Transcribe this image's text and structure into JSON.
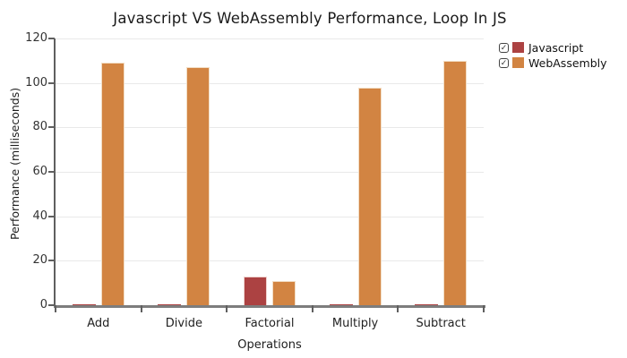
{
  "chart_data": {
    "type": "bar",
    "title": "Javascript VS WebAssembly Performance, Loop In JS",
    "xlabel": "Operations",
    "ylabel": "Performance (milliseconds)",
    "categories": [
      "Add",
      "Divide",
      "Factorial",
      "Multiply",
      "Subtract"
    ],
    "series": [
      {
        "name": "Javascript",
        "color": "#AC4242",
        "border_color": "#efd2ce",
        "checked": true,
        "values": [
          0.5,
          0.5,
          13,
          0.5,
          0.5
        ]
      },
      {
        "name": "WebAssembly",
        "color": "#D28442",
        "border_color": "#f2ddc4",
        "checked": true,
        "values": [
          109,
          107,
          11,
          98,
          110
        ]
      }
    ],
    "ylim": [
      0,
      120
    ],
    "yticks": [
      0,
      20,
      40,
      60,
      80,
      100,
      120
    ],
    "grid": true,
    "legend_position": "top-right",
    "legend_checkbox_glyph": "✓",
    "background": "#ffffff"
  }
}
